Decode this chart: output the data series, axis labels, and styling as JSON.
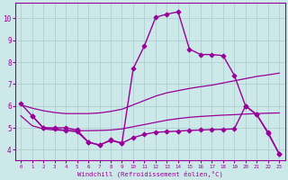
{
  "bg_color": "#cce8e8",
  "grid_color": "#aacccc",
  "line_color": "#990099",
  "xlabel": "Windchill (Refroidissement éolien,°C)",
  "xlim": [
    -0.5,
    23.5
  ],
  "ylim": [
    3.5,
    10.7
  ],
  "yticks": [
    4,
    5,
    6,
    7,
    8,
    9,
    10
  ],
  "xticks": [
    0,
    1,
    2,
    3,
    4,
    5,
    6,
    7,
    8,
    9,
    10,
    11,
    12,
    13,
    14,
    15,
    16,
    17,
    18,
    19,
    20,
    21,
    22,
    23
  ],
  "series": [
    {
      "x": [
        0,
        1,
        2,
        3,
        4,
        5,
        6,
        7,
        8,
        9,
        10,
        11,
        12,
        13,
        14,
        15,
        16,
        17,
        18,
        19,
        20,
        21,
        22,
        23
      ],
      "y": [
        6.1,
        5.55,
        5.0,
        5.0,
        5.0,
        4.9,
        4.35,
        4.2,
        4.45,
        4.3,
        7.7,
        8.75,
        10.05,
        10.2,
        10.3,
        8.6,
        8.35,
        8.35,
        8.3,
        7.4,
        6.0,
        5.6,
        4.8,
        3.8
      ],
      "marker": "D",
      "markersize": 2.5,
      "linewidth": 1.0
    },
    {
      "x": [
        0,
        1,
        2,
        3,
        4,
        5,
        6,
        7,
        8,
        9,
        10,
        11,
        12,
        13,
        14,
        15,
        16,
        17,
        18,
        19,
        20,
        21,
        22,
        23
      ],
      "y": [
        6.05,
        5.9,
        5.78,
        5.7,
        5.65,
        5.65,
        5.65,
        5.68,
        5.75,
        5.85,
        6.05,
        6.25,
        6.45,
        6.6,
        6.7,
        6.8,
        6.88,
        6.95,
        7.05,
        7.15,
        7.25,
        7.35,
        7.42,
        7.5
      ],
      "marker": null,
      "markersize": 0,
      "linewidth": 0.9
    },
    {
      "x": [
        0,
        1,
        2,
        3,
        4,
        5,
        6,
        7,
        8,
        9,
        10,
        11,
        12,
        13,
        14,
        15,
        16,
        17,
        18,
        19,
        20,
        21,
        22,
        23
      ],
      "y": [
        5.55,
        5.1,
        4.95,
        4.9,
        4.88,
        4.87,
        4.87,
        4.88,
        4.9,
        4.95,
        5.05,
        5.15,
        5.25,
        5.35,
        5.42,
        5.48,
        5.52,
        5.55,
        5.58,
        5.6,
        5.63,
        5.65,
        5.67,
        5.68
      ],
      "marker": null,
      "markersize": 0,
      "linewidth": 0.9
    },
    {
      "x": [
        1,
        2,
        3,
        4,
        5,
        6,
        7,
        8,
        9,
        10,
        11,
        12,
        13,
        14,
        15,
        16,
        17,
        18,
        19,
        20,
        21,
        22,
        23
      ],
      "y": [
        5.55,
        5.0,
        4.95,
        4.88,
        4.82,
        4.35,
        4.22,
        4.42,
        4.3,
        4.55,
        4.7,
        4.8,
        4.82,
        4.85,
        4.88,
        4.9,
        4.92,
        4.93,
        4.95,
        6.0,
        5.6,
        4.75,
        3.8
      ],
      "marker": "D",
      "markersize": 2.5,
      "linewidth": 1.0
    }
  ]
}
